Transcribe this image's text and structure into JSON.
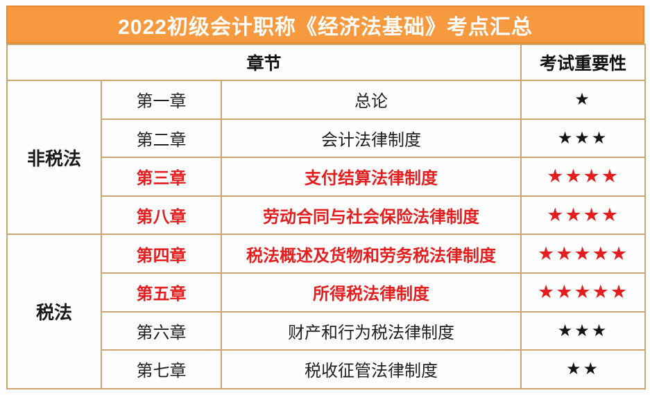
{
  "title": "2022初级会计职称《经济法基础》考点汇总",
  "table": {
    "headers": {
      "chapter_section": "章节",
      "importance": "考试重要性"
    },
    "groups": [
      {
        "label": "非税法",
        "row_span": 4
      },
      {
        "label": "税法",
        "row_span": 4
      }
    ],
    "rows": [
      {
        "chapter": "第一章",
        "title": "总论",
        "stars": "★",
        "importance": 1,
        "highlight": false
      },
      {
        "chapter": "第二章",
        "title": "会计法律制度",
        "stars": "★★★",
        "importance": 3,
        "highlight": false
      },
      {
        "chapter": "第三章",
        "title": "支付结算法律制度",
        "stars": "★★★★",
        "importance": 4,
        "highlight": true
      },
      {
        "chapter": "第八章",
        "title": "劳动合同与社会保险法律制度",
        "stars": "★★★★",
        "importance": 4,
        "highlight": true
      },
      {
        "chapter": "第四章",
        "title": "税法概述及货物和劳务税法律制度",
        "stars": "★★★★★",
        "importance": 5,
        "highlight": true
      },
      {
        "chapter": "第五章",
        "title": "所得税法律制度",
        "stars": "★★★★★",
        "importance": 5,
        "highlight": true
      },
      {
        "chapter": "第六章",
        "title": "财产和行为税法律制度",
        "stars": "★★★",
        "importance": 3,
        "highlight": false
      },
      {
        "chapter": "第七章",
        "title": "税收征管法律制度",
        "stars": "★★",
        "importance": 2,
        "highlight": false
      }
    ]
  },
  "colors": {
    "accent_orange": "#F7993F",
    "accent_orange_border": "#E9892F",
    "table_border_tan": "#CCA571",
    "highlight_red": "#E41E1E",
    "text_black": "#1A1A1A",
    "title_text_white": "#FFFFFF"
  }
}
